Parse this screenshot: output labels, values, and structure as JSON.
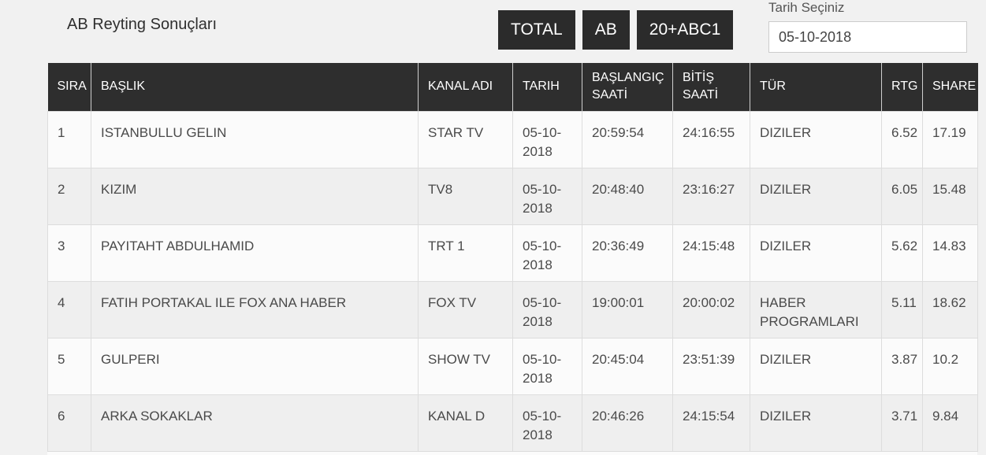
{
  "page": {
    "title": "AB Reyting Sonuçları",
    "filter_buttons": [
      {
        "label": "TOTAL"
      },
      {
        "label": "AB"
      },
      {
        "label": "20+ABC1"
      }
    ],
    "date_picker": {
      "label": "Tarih Seçiniz",
      "value": "05-10-2018"
    }
  },
  "table": {
    "columns": [
      "SIRA",
      "BAŞLIK",
      "KANAL ADI",
      "TARIH",
      "BAŞLANGIÇ SAATİ",
      "BİTİŞ SAATİ",
      "TÜR",
      "RTG",
      "SHARE"
    ],
    "rows": [
      [
        "1",
        "ISTANBULLU GELIN",
        "STAR TV",
        "05-10-2018",
        "20:59:54",
        "24:16:55",
        "DIZILER",
        "6.52",
        "17.19"
      ],
      [
        "2",
        "KIZIM",
        "TV8",
        "05-10-2018",
        "20:48:40",
        "23:16:27",
        "DIZILER",
        "6.05",
        "15.48"
      ],
      [
        "3",
        "PAYITAHT ABDULHAMID",
        "TRT 1",
        "05-10-2018",
        "20:36:49",
        "24:15:48",
        "DIZILER",
        "5.62",
        "14.83"
      ],
      [
        "4",
        "FATIH PORTAKAL ILE FOX ANA HABER",
        "FOX TV",
        "05-10-2018",
        "19:00:01",
        "20:00:02",
        "HABER PROGRAMLARI",
        "5.11",
        "18.62"
      ],
      [
        "5",
        "GULPERI",
        "SHOW TV",
        "05-10-2018",
        "20:45:04",
        "23:51:39",
        "DIZILER",
        "3.87",
        "10.2"
      ],
      [
        "6",
        "ARKA SOKAKLAR",
        "KANAL D",
        "05-10-2018",
        "20:46:26",
        "24:15:54",
        "DIZILER",
        "3.71",
        "9.84"
      ]
    ]
  },
  "colors": {
    "header_bg": "#2e2e2e",
    "button_bg": "#2b2b2b",
    "page_bg": "#f1f1f1",
    "row_odd": "#fbfbfb",
    "row_even": "#efefef",
    "border": "#dddddd",
    "cell_text": "#4a4a4a"
  }
}
